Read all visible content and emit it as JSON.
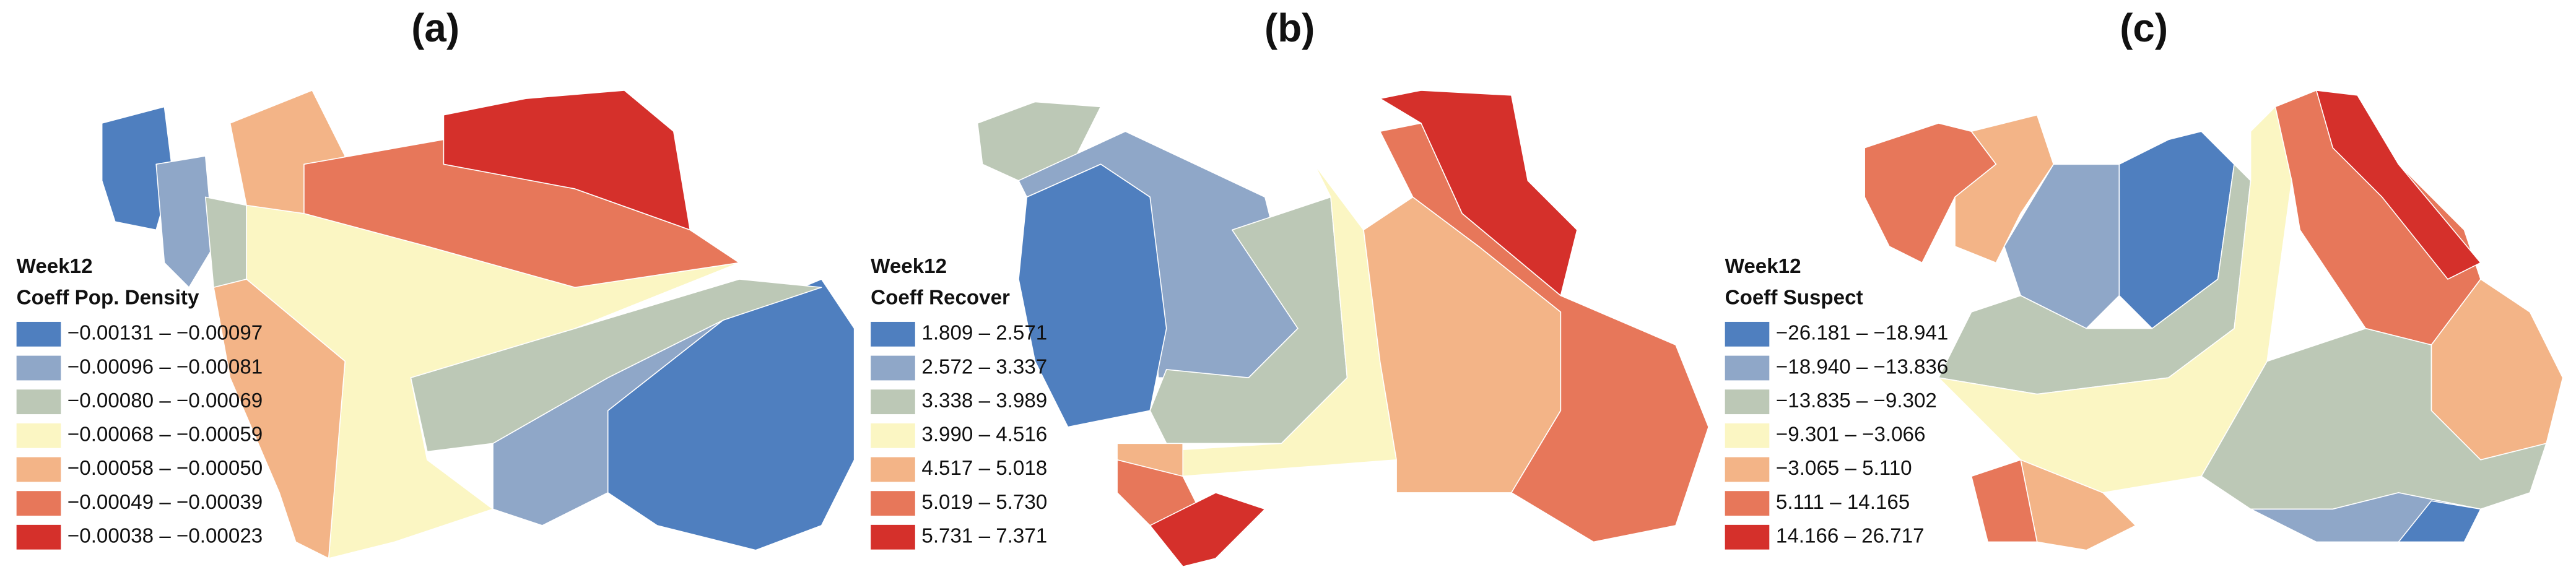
{
  "panels": [
    {
      "title": "(a)",
      "legend_title": [
        "Week12",
        "Coeff Pop. Density"
      ],
      "classes": [
        {
          "label": "−0.00131 – −0.00097",
          "color": "#4f7fbf"
        },
        {
          "label": "−0.00096 – −0.00081",
          "color": "#8fa7c8"
        },
        {
          "label": "−0.00080 – −0.00069",
          "color": "#bcc8b6"
        },
        {
          "label": "−0.00068 – −0.00059",
          "color": "#fbf6c3"
        },
        {
          "label": "−0.00058 – −0.00050",
          "color": "#f3b487"
        },
        {
          "label": "−0.00049 – −0.00039",
          "color": "#e7775a"
        },
        {
          "label": "−0.00038 – −0.00023",
          "color": "#d5302b"
        }
      ]
    },
    {
      "title": "(b)",
      "legend_title": [
        "Week12",
        "Coeff Recover"
      ],
      "classes": [
        {
          "label": "1.809 – 2.571",
          "color": "#4f7fbf"
        },
        {
          "label": "2.572 – 3.337",
          "color": "#8fa7c8"
        },
        {
          "label": "3.338 – 3.989",
          "color": "#bcc8b6"
        },
        {
          "label": "3.990 – 4.516",
          "color": "#fbf6c3"
        },
        {
          "label": "4.517 – 5.018",
          "color": "#f3b487"
        },
        {
          "label": "5.019 – 5.730",
          "color": "#e7775a"
        },
        {
          "label": "5.731 – 7.371",
          "color": "#d5302b"
        }
      ]
    },
    {
      "title": "(c)",
      "legend_title": [
        "Week12",
        "Coeff Suspect"
      ],
      "classes": [
        {
          "label": "−26.181 – −18.941",
          "color": "#4f7fbf"
        },
        {
          "label": "−18.940 – −13.836",
          "color": "#8fa7c8"
        },
        {
          "label": "−13.835 – −9.302",
          "color": "#bcc8b6"
        },
        {
          "label": "−9.301 – −3.066",
          "color": "#fbf6c3"
        },
        {
          "label": "−3.065 – 5.110",
          "color": "#f3b487"
        },
        {
          "label": "5.111 – 14.165",
          "color": "#e7775a"
        },
        {
          "label": "14.166 – 26.717",
          "color": "#d5302b"
        }
      ]
    }
  ]
}
